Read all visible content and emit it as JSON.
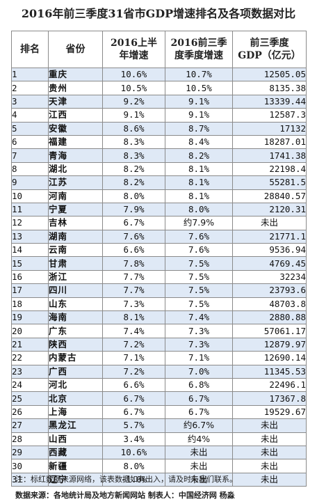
{
  "title": "2016年前三季度31省市GDP增速排名及各项数据对比",
  "headers": {
    "rank": "排名",
    "province": "省份",
    "h1_line1": "2016上半",
    "h1_line2": "年增速",
    "q3_line1": "2016前三季",
    "q3_line2": "度季度增速",
    "gdp_line1": "前三季度",
    "gdp_line2": "GDP（亿元）"
  },
  "rows": [
    {
      "rank": "1",
      "province": "重庆",
      "h1": "10.6%",
      "q3": "10.7%",
      "gdp": "12505.05"
    },
    {
      "rank": "2",
      "province": "贵州",
      "h1": "10.5%",
      "q3": "10.5%",
      "gdp": "8135.38"
    },
    {
      "rank": "3",
      "province": "天津",
      "h1": "9.2%",
      "q3": "9.1%",
      "gdp": "13339.44"
    },
    {
      "rank": "4",
      "province": "江西",
      "h1": "9.1%",
      "q3": "9.1%",
      "gdp": "12587.3"
    },
    {
      "rank": "5",
      "province": "安徽",
      "h1": "8.6%",
      "q3": "8.7%",
      "gdp": "17132"
    },
    {
      "rank": "6",
      "province": "福建",
      "h1": "8.3%",
      "q3": "8.4%",
      "gdp": "18287.01"
    },
    {
      "rank": "7",
      "province": "青海",
      "h1": "8.3%",
      "q3": "8.2%",
      "gdp": "1741.38"
    },
    {
      "rank": "8",
      "province": "湖北",
      "h1": "8.2%",
      "q3": "8.1%",
      "gdp": "22198.4"
    },
    {
      "rank": "9",
      "province": "江苏",
      "h1": "8.2%",
      "q3": "8.1%",
      "gdp": "55281.5"
    },
    {
      "rank": "10",
      "province": "河南",
      "h1": "8.0%",
      "q3": "8.1%",
      "gdp": "28840.57"
    },
    {
      "rank": "11",
      "province": "宁夏",
      "h1": "7.9%",
      "q3": "8.0%",
      "gdp": "2120.31"
    },
    {
      "rank": "12",
      "province": "吉林",
      "h1": "6.7%",
      "q3": "约7.9%",
      "gdp": "未出",
      "q3_red": true,
      "gdp_na": true
    },
    {
      "rank": "13",
      "province": "湖南",
      "h1": "7.6%",
      "q3": "7.6%",
      "gdp": "21771.1"
    },
    {
      "rank": "14",
      "province": "云南",
      "h1": "6.6%",
      "q3": "7.6%",
      "gdp": "9536.94"
    },
    {
      "rank": "15",
      "province": "甘肃",
      "h1": "7.8%",
      "q3": "7.5%",
      "gdp": "4769.45"
    },
    {
      "rank": "16",
      "province": "浙江",
      "h1": "7.7%",
      "q3": "7.5%",
      "gdp": "32234"
    },
    {
      "rank": "17",
      "province": "四川",
      "h1": "7.7%",
      "q3": "7.5%",
      "gdp": "23793.6"
    },
    {
      "rank": "18",
      "province": "山东",
      "h1": "7.3%",
      "q3": "7.5%",
      "gdp": "48703.8"
    },
    {
      "rank": "19",
      "province": "海南",
      "h1": "8.1%",
      "q3": "7.4%",
      "gdp": "2880.88"
    },
    {
      "rank": "20",
      "province": "广东",
      "h1": "7.4%",
      "q3": "7.3%",
      "gdp": "57061.17"
    },
    {
      "rank": "21",
      "province": "陕西",
      "h1": "7.2%",
      "q3": "7.3%",
      "gdp": "12879.97"
    },
    {
      "rank": "22",
      "province": "内蒙古",
      "h1": "7.1%",
      "q3": "7.1%",
      "gdp": "12690.14"
    },
    {
      "rank": "23",
      "province": "广西",
      "h1": "7.2%",
      "q3": "7.0%",
      "gdp": "11345.53"
    },
    {
      "rank": "24",
      "province": "河北",
      "h1": "6.6%",
      "q3": "6.8%",
      "gdp": "22496.1"
    },
    {
      "rank": "25",
      "province": "北京",
      "h1": "6.7%",
      "q3": "6.7%",
      "gdp": "17367.8"
    },
    {
      "rank": "26",
      "province": "上海",
      "h1": "6.7%",
      "q3": "6.7%",
      "gdp": "19529.67"
    },
    {
      "rank": "27",
      "province": "黑龙江",
      "h1": "5.7%",
      "q3": "约6.7%",
      "gdp": "未出",
      "q3_red": true,
      "gdp_na": true
    },
    {
      "rank": "28",
      "province": "山西",
      "h1": "3.4%",
      "q3": "约4%",
      "gdp": "未出",
      "q3_red": true,
      "gdp_na": true
    },
    {
      "rank": "29",
      "province": "西藏",
      "h1": "10.6%",
      "q3": "未出",
      "gdp": "未出",
      "q3_na": true,
      "gdp_na": true,
      "rank_gray": true
    },
    {
      "rank": "30",
      "province": "新疆",
      "h1": "8.0%",
      "q3": "未出",
      "gdp": "未出",
      "q3_na": true,
      "gdp_na": true,
      "rank_gray": true
    },
    {
      "rank": "31",
      "province": "辽宁",
      "h1": "-1.0%",
      "q3": "未出",
      "gdp": "未出",
      "q3_na": true,
      "gdp_na": true,
      "rank_gray": true
    }
  ],
  "note": "注：标红数据来源网络，该表数据如有出入，请及时与我们联系。",
  "source": "数据来源：各地统计局及地方新闻网站  制表人：中国经济网 杨淼",
  "colors": {
    "red_text": "#c0504d",
    "gray_text": "#9a9a9a",
    "row_tint": "#dfe9f6",
    "border": "#8a8a8a"
  }
}
